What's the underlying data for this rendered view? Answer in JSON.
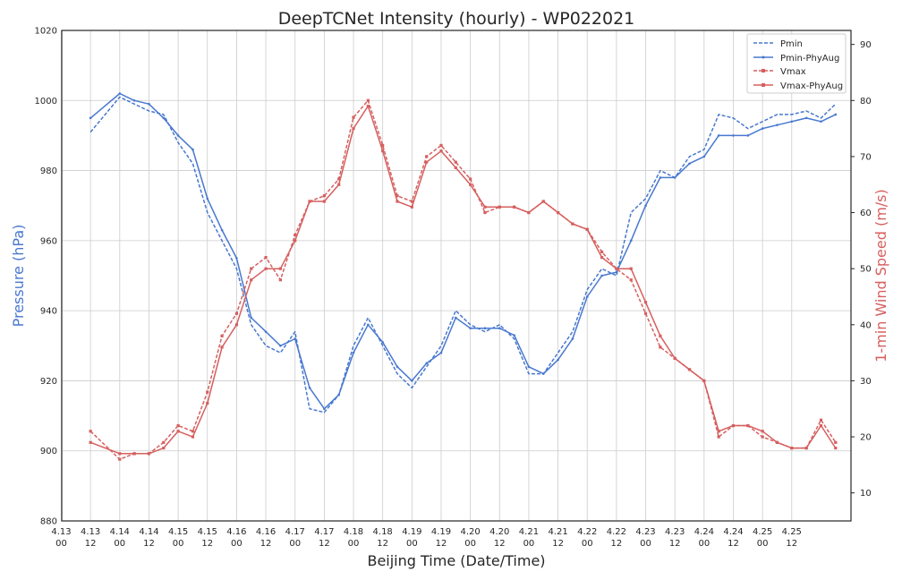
{
  "chart_data": {
    "type": "line",
    "title": "DeepTCNet Intensity (hourly) - WP022021",
    "xlabel": "Beijing Time (Date/Time)",
    "ylabel_left": "Pressure (hPa)",
    "ylabel_right": "1-min Wind Speed (m/s)",
    "x_ticks": [
      {
        "date": "4.13",
        "time": "00"
      },
      {
        "date": "4.13",
        "time": "12"
      },
      {
        "date": "4.14",
        "time": "00"
      },
      {
        "date": "4.14",
        "time": "12"
      },
      {
        "date": "4.15",
        "time": "00"
      },
      {
        "date": "4.15",
        "time": "12"
      },
      {
        "date": "4.16",
        "time": "00"
      },
      {
        "date": "4.16",
        "time": "12"
      },
      {
        "date": "4.17",
        "time": "00"
      },
      {
        "date": "4.17",
        "time": "12"
      },
      {
        "date": "4.18",
        "time": "00"
      },
      {
        "date": "4.18",
        "time": "12"
      },
      {
        "date": "4.19",
        "time": "00"
      },
      {
        "date": "4.19",
        "time": "12"
      },
      {
        "date": "4.20",
        "time": "00"
      },
      {
        "date": "4.20",
        "time": "12"
      },
      {
        "date": "4.21",
        "time": "00"
      },
      {
        "date": "4.21",
        "time": "12"
      },
      {
        "date": "4.22",
        "time": "00"
      },
      {
        "date": "4.22",
        "time": "12"
      },
      {
        "date": "4.23",
        "time": "00"
      },
      {
        "date": "4.23",
        "time": "12"
      },
      {
        "date": "4.24",
        "time": "00"
      },
      {
        "date": "4.24",
        "time": "12"
      },
      {
        "date": "4.25",
        "time": "00"
      },
      {
        "date": "4.25",
        "time": "12"
      }
    ],
    "xlim_hours": [
      0,
      324
    ],
    "ylim_left": [
      880,
      1020
    ],
    "yticks_left": [
      880,
      900,
      920,
      940,
      960,
      980,
      1000,
      1020
    ],
    "ylim_right": [
      5,
      92.5
    ],
    "yticks_right": [
      10,
      20,
      30,
      40,
      50,
      60,
      70,
      80,
      90
    ],
    "grid": true,
    "legend_position": "top-right",
    "colors": {
      "pressure": "#4878cf",
      "wind": "#d65f5f"
    },
    "hour_offsets": [
      12,
      24,
      30,
      36,
      42,
      48,
      54,
      60,
      66,
      72,
      78,
      84,
      90,
      96,
      102,
      108,
      114,
      120,
      126,
      132,
      138,
      144,
      150,
      156,
      162,
      168,
      174,
      180,
      186,
      192,
      198,
      204,
      210,
      216,
      222,
      228,
      234,
      240,
      246,
      252,
      258,
      264,
      270,
      276,
      282,
      288,
      294,
      300,
      306,
      312,
      318
    ],
    "series": [
      {
        "name": "Pmin",
        "axis": "left",
        "style": "dashed",
        "values": [
          991,
          1001,
          999,
          997,
          996,
          988,
          982,
          968,
          960,
          952,
          936,
          930,
          928,
          934,
          912,
          911,
          916,
          930,
          938,
          930,
          922,
          918,
          924,
          930,
          940,
          936,
          934,
          936,
          932,
          922,
          922,
          928,
          934,
          946,
          952,
          950,
          968,
          972,
          980,
          978,
          984,
          986,
          996,
          995,
          992,
          994,
          996,
          996,
          997,
          995,
          999
        ]
      },
      {
        "name": "Pmin-PhyAug",
        "axis": "left",
        "style": "solid",
        "values": [
          995,
          1002,
          1000,
          999,
          995,
          990,
          986,
          972,
          963,
          955,
          938,
          934,
          930,
          932,
          918,
          912,
          916,
          928,
          936,
          931,
          924,
          920,
          925,
          928,
          938,
          935,
          935,
          935,
          933,
          924,
          922,
          926,
          932,
          944,
          950,
          951,
          960,
          970,
          978,
          978,
          982,
          984,
          990,
          990,
          990,
          992,
          993,
          994,
          995,
          994,
          996
        ]
      },
      {
        "name": "Vmax",
        "axis": "right",
        "style": "dashed",
        "values": [
          21,
          16,
          17,
          17,
          19,
          22,
          21,
          28,
          38,
          42,
          50,
          52,
          48,
          56,
          62,
          63,
          66,
          77,
          80,
          72,
          63,
          62,
          70,
          72,
          69,
          66,
          60,
          61,
          61,
          60,
          62,
          60,
          58,
          57,
          53,
          50,
          48,
          42,
          36,
          34,
          32,
          30,
          20,
          22,
          22,
          20,
          19,
          18,
          18,
          23,
          19
        ]
      },
      {
        "name": "Vmax-PhyAug",
        "axis": "right",
        "style": "solid",
        "values": [
          19,
          17,
          17,
          17,
          18,
          21,
          20,
          26,
          36,
          40,
          48,
          50,
          50,
          55,
          62,
          62,
          65,
          75,
          79,
          71,
          62,
          61,
          69,
          71,
          68,
          65,
          61,
          61,
          61,
          60,
          62,
          60,
          58,
          57,
          52,
          50,
          50,
          44,
          38,
          34,
          32,
          30,
          21,
          22,
          22,
          21,
          19,
          18,
          18,
          22,
          18
        ]
      }
    ]
  },
  "legend": {
    "items": [
      "Pmin",
      "Pmin-PhyAug",
      "Vmax",
      "Vmax-PhyAug"
    ]
  }
}
